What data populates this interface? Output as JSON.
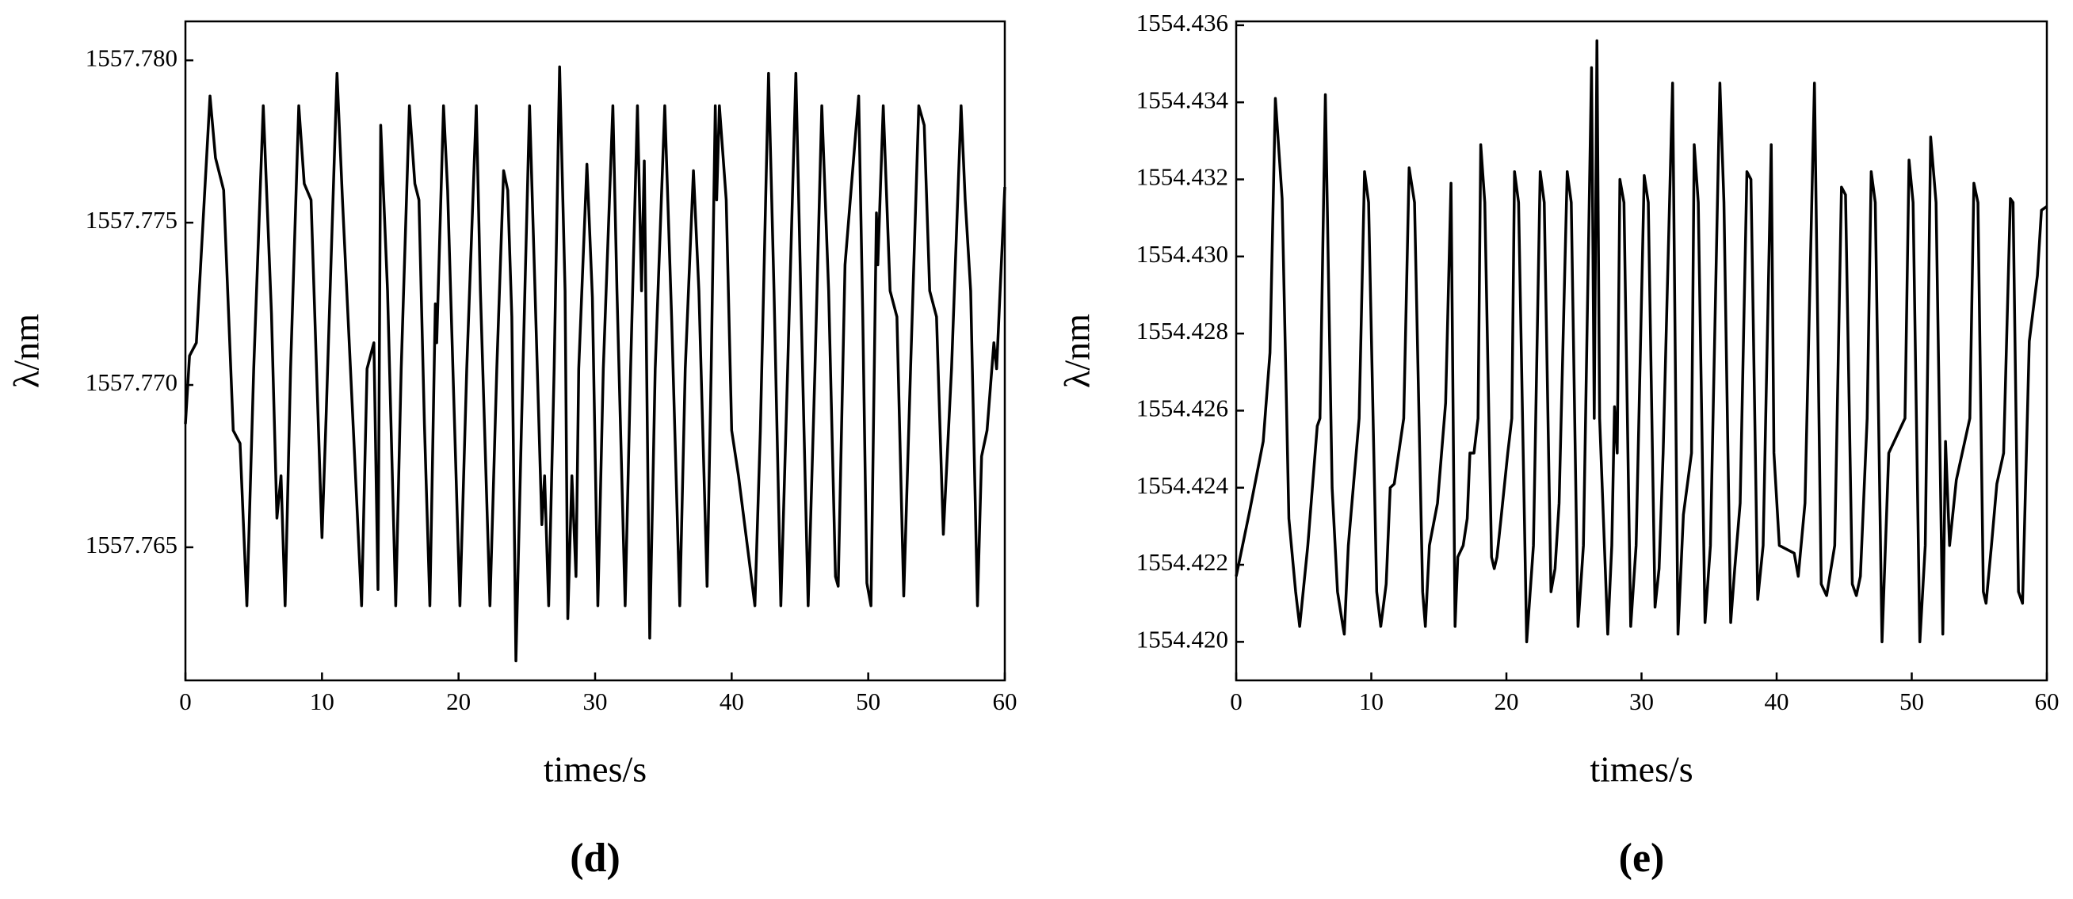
{
  "chart_data": [
    {
      "type": "line",
      "caption": "(d)",
      "xlabel": "times/s",
      "ylabel": "λ/nm",
      "color": "#000000",
      "xlim": [
        0,
        60
      ],
      "xticks": [
        0,
        10,
        20,
        30,
        40,
        50,
        60
      ],
      "ylim": [
        1557.7609,
        1557.7812
      ],
      "yticks": [
        1557.765,
        {
          "value": 1557.77,
          "label": "1557.770"
        },
        1557.775,
        {
          "value": 1557.78,
          "label": "1557.780"
        }
      ],
      "x": [
        0,
        0.3,
        0.8,
        1.8,
        2.2,
        2.8,
        3.5,
        4,
        4.5,
        5,
        5.7,
        6.3,
        6.7,
        7,
        7.3,
        7.7,
        8.3,
        8.7,
        9.2,
        10,
        10.3,
        11.1,
        11.5,
        12.3,
        12.9,
        13.3,
        13.8,
        14.1,
        14.3,
        14.8,
        15.4,
        15.8,
        16.4,
        16.8,
        17.1,
        17.5,
        17.9,
        18.3,
        18.4,
        18.9,
        19.2,
        20.1,
        20.6,
        21.3,
        21.6,
        22.3,
        22.8,
        23.3,
        23.6,
        23.9,
        24.2,
        24.6,
        25.2,
        25.6,
        26.1,
        26.3,
        26.6,
        27,
        27.4,
        27.8,
        28,
        28.3,
        28.6,
        28.8,
        29.4,
        29.8,
        30.2,
        30.6,
        31.3,
        31.6,
        32.2,
        32.6,
        33.1,
        33.4,
        33.6,
        34,
        34.4,
        35.1,
        35.6,
        36.2,
        36.6,
        37.2,
        37.6,
        38.2,
        38.5,
        38.8,
        38.9,
        39.1,
        39.6,
        40,
        40.5,
        41.7,
        42.1,
        42.7,
        43.1,
        43.6,
        44.1,
        44.7,
        45.1,
        45.6,
        46.1,
        46.6,
        47.1,
        47.6,
        47.8,
        48.3,
        49.3,
        49.6,
        49.9,
        50.2,
        50.6,
        50.7,
        51.1,
        51.6,
        52.1,
        52.6,
        53.1,
        53.7,
        54.1,
        54.5,
        55,
        55.5,
        56.1,
        56.8,
        57.1,
        57.5,
        58,
        58.3,
        58.7,
        59.2,
        59.4,
        60
      ],
      "values": [
        1557.7688,
        1557.7709,
        1557.7713,
        1557.7789,
        1557.777,
        1557.776,
        1557.7686,
        1557.7682,
        1557.7632,
        1557.7705,
        1557.7786,
        1557.7722,
        1557.7659,
        1557.7672,
        1557.7632,
        1557.7705,
        1557.7786,
        1557.7762,
        1557.7757,
        1557.7653,
        1557.769,
        1557.7796,
        1557.7757,
        1557.7686,
        1557.7632,
        1557.7705,
        1557.7713,
        1557.7637,
        1557.778,
        1557.7729,
        1557.7632,
        1557.7705,
        1557.7786,
        1557.7762,
        1557.7757,
        1557.7688,
        1557.7632,
        1557.7725,
        1557.7713,
        1557.7786,
        1557.776,
        1557.7632,
        1557.7705,
        1557.7786,
        1557.7729,
        1557.7632,
        1557.7705,
        1557.7766,
        1557.776,
        1557.7721,
        1557.7615,
        1557.7686,
        1557.7786,
        1557.7729,
        1557.7657,
        1557.7672,
        1557.7632,
        1557.7705,
        1557.7798,
        1557.7729,
        1557.7628,
        1557.7672,
        1557.7641,
        1557.7705,
        1557.7768,
        1557.7727,
        1557.7632,
        1557.7705,
        1557.7786,
        1557.7729,
        1557.7632,
        1557.7705,
        1557.7786,
        1557.7729,
        1557.7769,
        1557.7622,
        1557.7705,
        1557.7786,
        1557.7721,
        1557.7632,
        1557.7705,
        1557.7766,
        1557.7729,
        1557.7638,
        1557.7705,
        1557.7786,
        1557.7757,
        1557.7786,
        1557.7757,
        1557.7686,
        1557.7672,
        1557.7632,
        1557.7686,
        1557.7796,
        1557.7729,
        1557.7632,
        1557.7705,
        1557.7796,
        1557.7721,
        1557.7632,
        1557.7705,
        1557.7786,
        1557.7729,
        1557.7641,
        1557.7638,
        1557.7737,
        1557.7789,
        1557.7721,
        1557.7639,
        1557.7632,
        1557.7753,
        1557.7737,
        1557.7786,
        1557.7729,
        1557.7721,
        1557.7635,
        1557.7705,
        1557.7786,
        1557.778,
        1557.7729,
        1557.7721,
        1557.7654,
        1557.7705,
        1557.7786,
        1557.7757,
        1557.7729,
        1557.7632,
        1557.7678,
        1557.7686,
        1557.7713,
        1557.7705,
        1557.7761
      ]
    },
    {
      "type": "line",
      "caption": "(e)",
      "xlabel": "times/s",
      "ylabel": "λ/nm",
      "color": "#000000",
      "xlim": [
        0,
        60
      ],
      "xticks": [
        0,
        10,
        20,
        30,
        40,
        50,
        60
      ],
      "ylim": [
        1554.419,
        1554.4361
      ],
      "yticks": [
        {
          "value": 1554.42,
          "label": "1554.420"
        },
        1554.422,
        1554.424,
        1554.426,
        1554.428,
        {
          "value": 1554.43,
          "label": "1554.430"
        },
        1554.432,
        1554.434,
        1554.436
      ],
      "x": [
        0,
        1,
        2,
        2.5,
        2.9,
        3.4,
        3.9,
        4.4,
        4.7,
        5.3,
        6,
        6.2,
        6.6,
        7.1,
        7.5,
        7.9,
        8,
        8.3,
        9.1,
        9.5,
        9.8,
        10.4,
        10.7,
        11.1,
        11.4,
        11.7,
        12.4,
        12.8,
        13.2,
        13.8,
        14,
        14.3,
        14.9,
        15.5,
        15.9,
        16.2,
        16.4,
        16.8,
        17.1,
        17.3,
        17.6,
        17.9,
        18.1,
        18.4,
        18.9,
        19.1,
        19.3,
        19.6,
        20.1,
        20.4,
        20.6,
        20.9,
        21.5,
        22,
        22.5,
        22.8,
        23.3,
        23.6,
        23.9,
        24.5,
        24.8,
        25.3,
        25.7,
        26.3,
        26.5,
        26.7,
        26.9,
        27.5,
        27.8,
        28,
        28.2,
        28.4,
        28.7,
        29.2,
        29.6,
        30.2,
        30.5,
        31,
        31.3,
        31.6,
        32.3,
        32.7,
        33.1,
        33.7,
        33.9,
        34.2,
        34.7,
        35.1,
        35.8,
        36.1,
        36.6,
        36.9,
        37.3,
        37.8,
        38.1,
        38.6,
        39,
        39.6,
        39.8,
        40.2,
        41.3,
        41.6,
        42.1,
        42.8,
        43.3,
        43.7,
        44.3,
        44.8,
        45.1,
        45.6,
        45.9,
        46.2,
        46.7,
        47,
        47.3,
        47.8,
        48.3,
        49.5,
        49.8,
        50.1,
        50.6,
        51,
        51.4,
        51.8,
        52.3,
        52.5,
        52.8,
        53.3,
        54.3,
        54.6,
        54.9,
        55.3,
        55.5,
        55.9,
        56.3,
        56.8,
        57.3,
        57.5,
        57.9,
        58.2,
        58.7,
        59.3,
        59.6,
        60
      ],
      "values": [
        1554.4217,
        1554.4234,
        1554.4252,
        1554.4275,
        1554.4341,
        1554.4315,
        1554.4232,
        1554.4213,
        1554.4204,
        1554.4225,
        1554.4256,
        1554.4258,
        1554.4342,
        1554.424,
        1554.4213,
        1554.4204,
        1554.4202,
        1554.4225,
        1554.4258,
        1554.4322,
        1554.4314,
        1554.4213,
        1554.4204,
        1554.4215,
        1554.424,
        1554.4241,
        1554.4258,
        1554.4323,
        1554.4314,
        1554.4213,
        1554.4204,
        1554.4225,
        1554.4236,
        1554.4262,
        1554.4319,
        1554.4204,
        1554.4222,
        1554.4225,
        1554.4232,
        1554.4249,
        1554.4249,
        1554.4258,
        1554.4329,
        1554.4314,
        1554.4222,
        1554.4219,
        1554.4222,
        1554.4232,
        1554.4249,
        1554.4258,
        1554.4322,
        1554.4314,
        1554.42,
        1554.4225,
        1554.4322,
        1554.4314,
        1554.4213,
        1554.4219,
        1554.4236,
        1554.4322,
        1554.4314,
        1554.4204,
        1554.4225,
        1554.4349,
        1554.4258,
        1554.4356,
        1554.4258,
        1554.4202,
        1554.4225,
        1554.4261,
        1554.4249,
        1554.432,
        1554.4314,
        1554.4204,
        1554.4225,
        1554.4321,
        1554.4314,
        1554.4209,
        1554.4219,
        1554.4249,
        1554.4345,
        1554.4202,
        1554.4233,
        1554.4249,
        1554.4329,
        1554.4314,
        1554.4205,
        1554.4225,
        1554.4345,
        1554.4314,
        1554.4205,
        1554.4219,
        1554.4236,
        1554.4322,
        1554.432,
        1554.4211,
        1554.4225,
        1554.4329,
        1554.4249,
        1554.4225,
        1554.4223,
        1554.4217,
        1554.4236,
        1554.4345,
        1554.4215,
        1554.4212,
        1554.4225,
        1554.4318,
        1554.4316,
        1554.4215,
        1554.4212,
        1554.4217,
        1554.4258,
        1554.4322,
        1554.4314,
        1554.42,
        1554.4249,
        1554.4258,
        1554.4325,
        1554.4314,
        1554.42,
        1554.4225,
        1554.4331,
        1554.4314,
        1554.4202,
        1554.4252,
        1554.4225,
        1554.4242,
        1554.4258,
        1554.4319,
        1554.4314,
        1554.4213,
        1554.421,
        1554.4225,
        1554.4241,
        1554.4249,
        1554.4315,
        1554.4314,
        1554.4213,
        1554.421,
        1554.4278,
        1554.4295,
        1554.4312,
        1554.4313
      ]
    }
  ]
}
